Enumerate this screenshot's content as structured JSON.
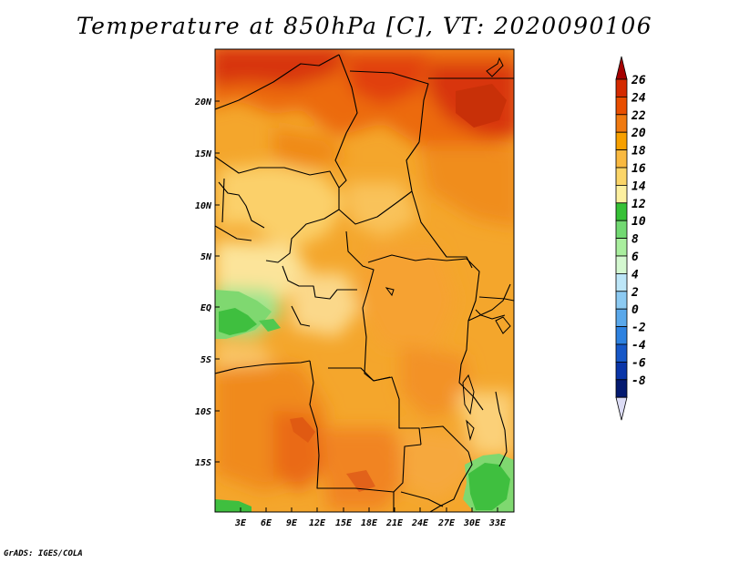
{
  "title": "Temperature at 850hPa [C], VT: 2020090106",
  "credit": "GrADS: IGES/COLA",
  "map": {
    "latitude_labels": [
      "20N",
      "15N",
      "10N",
      "5N",
      "EQ",
      "5S",
      "10S",
      "15S"
    ],
    "longitude_labels": [
      "3E",
      "6E",
      "9E",
      "12E",
      "15E",
      "18E",
      "21E",
      "24E",
      "27E",
      "30E",
      "33E"
    ]
  },
  "colorbar": {
    "labels": [
      "26",
      "24",
      "22",
      "20",
      "18",
      "16",
      "14",
      "12",
      "10",
      "8",
      "6",
      "4",
      "2",
      "0",
      "-2",
      "-4",
      "-6",
      "-8"
    ],
    "colors": [
      "#a50000",
      "#d42a00",
      "#e84e00",
      "#f07a10",
      "#f7a000",
      "#f9b940",
      "#fbd568",
      "#fdf0a0",
      "#36c136",
      "#72d972",
      "#a9ee9e",
      "#d4f8d0",
      "#bde6f8",
      "#8ccaf2",
      "#5aa8ea",
      "#2e82e0",
      "#1758c8",
      "#0a35a8",
      "#041a70",
      "#dcdcf5"
    ]
  }
}
